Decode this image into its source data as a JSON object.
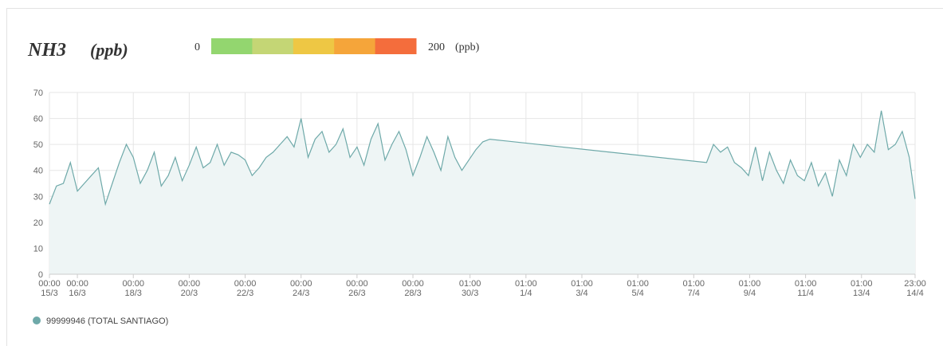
{
  "chart_data": {
    "type": "line",
    "title": "NH3",
    "unit": "(ppb)",
    "colorscale": {
      "min": 0,
      "max": 200,
      "unit": "(ppb)",
      "colors": [
        "#93d66f",
        "#c4d675",
        "#eec744",
        "#f5a53a",
        "#f46d3c"
      ]
    },
    "x": [
      "15/3 00:00",
      "15/3 06:00",
      "15/3 12:00",
      "15/3 18:00",
      "16/3 00:00",
      "16/3 06:00",
      "16/3 12:00",
      "16/3 18:00",
      "17/3 00:00",
      "17/3 06:00",
      "17/3 12:00",
      "17/3 18:00",
      "18/3 00:00",
      "18/3 06:00",
      "18/3 12:00",
      "18/3 18:00",
      "19/3 00:00",
      "19/3 06:00",
      "19/3 12:00",
      "19/3 18:00",
      "20/3 00:00",
      "20/3 06:00",
      "20/3 12:00",
      "20/3 18:00",
      "21/3 00:00",
      "21/3 06:00",
      "21/3 12:00",
      "21/3 18:00",
      "22/3 00:00",
      "22/3 06:00",
      "22/3 12:00",
      "22/3 18:00",
      "23/3 00:00",
      "23/3 06:00",
      "23/3 12:00",
      "23/3 18:00",
      "24/3 00:00",
      "24/3 06:00",
      "24/3 12:00",
      "24/3 18:00",
      "25/3 00:00",
      "25/3 06:00",
      "25/3 12:00",
      "25/3 18:00",
      "26/3 00:00",
      "26/3 06:00",
      "26/3 12:00",
      "26/3 18:00",
      "27/3 00:00",
      "27/3 06:00",
      "27/3 12:00",
      "27/3 18:00",
      "28/3 00:00",
      "28/3 06:00",
      "28/3 12:00",
      "28/3 18:00",
      "29/3 00:00",
      "29/3 06:00",
      "29/3 12:00",
      "29/3 18:00",
      "30/3 00:00",
      "30/3 06:00",
      "30/3 12:00",
      "30/3 18:00",
      "7/4 12:00",
      "7/4 18:00",
      "8/4 00:00",
      "8/4 06:00",
      "8/4 12:00",
      "8/4 18:00",
      "9/4 00:00",
      "9/4 06:00",
      "9/4 12:00",
      "9/4 18:00",
      "10/4 00:00",
      "10/4 06:00",
      "10/4 12:00",
      "10/4 18:00",
      "11/4 00:00",
      "11/4 06:00",
      "11/4 12:00",
      "11/4 18:00",
      "12/4 00:00",
      "12/4 06:00",
      "12/4 12:00",
      "12/4 18:00",
      "13/4 00:00",
      "13/4 06:00",
      "13/4 12:00",
      "13/4 18:00",
      "14/4 00:00",
      "14/4 06:00",
      "14/4 12:00",
      "14/4 18:00",
      "14/4 23:00"
    ],
    "series": [
      {
        "name": "99999946 (TOTAL SANTIAGO)",
        "color": "#6ea9a9",
        "fill": "#eef5f5",
        "values": [
          27,
          34,
          35,
          43,
          32,
          35,
          38,
          41,
          27,
          35,
          43,
          50,
          45,
          35,
          40,
          47,
          34,
          38,
          45,
          36,
          42,
          49,
          41,
          43,
          50,
          42,
          47,
          46,
          44,
          38,
          41,
          45,
          47,
          50,
          53,
          49,
          60,
          45,
          52,
          55,
          47,
          50,
          56,
          45,
          49,
          42,
          52,
          58,
          44,
          50,
          55,
          48,
          38,
          45,
          53,
          47,
          40,
          53,
          45,
          40,
          44,
          48,
          51,
          52,
          43,
          50,
          47,
          49,
          43,
          41,
          38,
          49,
          36,
          47,
          40,
          35,
          44,
          38,
          36,
          43,
          34,
          39,
          30,
          44,
          38,
          50,
          45,
          50,
          47,
          63,
          48,
          50,
          55,
          45,
          29
        ]
      }
    ],
    "xlim": [
      "15/3 00:00",
      "14/4 23:00"
    ],
    "xticks": [
      {
        "value": "15/3 00:00",
        "label": [
          "00:00",
          "15/3"
        ]
      },
      {
        "value": "16/3 00:00",
        "label": [
          "00:00",
          "16/3"
        ]
      },
      {
        "value": "18/3 00:00",
        "label": [
          "00:00",
          "18/3"
        ]
      },
      {
        "value": "20/3 00:00",
        "label": [
          "00:00",
          "20/3"
        ]
      },
      {
        "value": "22/3 00:00",
        "label": [
          "00:00",
          "22/3"
        ]
      },
      {
        "value": "24/3 00:00",
        "label": [
          "00:00",
          "24/3"
        ]
      },
      {
        "value": "26/3 00:00",
        "label": [
          "00:00",
          "26/3"
        ]
      },
      {
        "value": "28/3 00:00",
        "label": [
          "00:00",
          "28/3"
        ]
      },
      {
        "value": "30/3 01:00",
        "label": [
          "01:00",
          "30/3"
        ]
      },
      {
        "value": "1/4 01:00",
        "label": [
          "01:00",
          "1/4"
        ]
      },
      {
        "value": "3/4 01:00",
        "label": [
          "01:00",
          "3/4"
        ]
      },
      {
        "value": "5/4 01:00",
        "label": [
          "01:00",
          "5/4"
        ]
      },
      {
        "value": "7/4 01:00",
        "label": [
          "01:00",
          "7/4"
        ]
      },
      {
        "value": "9/4 01:00",
        "label": [
          "01:00",
          "9/4"
        ]
      },
      {
        "value": "11/4 01:00",
        "label": [
          "01:00",
          "11/4"
        ]
      },
      {
        "value": "13/4 01:00",
        "label": [
          "01:00",
          "13/4"
        ]
      },
      {
        "value": "14/4 23:00",
        "label": [
          "23:00",
          "14/4"
        ]
      }
    ],
    "ylim": [
      0,
      70
    ],
    "yticks": [
      0,
      10,
      20,
      30,
      40,
      50,
      60,
      70
    ],
    "grid": true
  }
}
